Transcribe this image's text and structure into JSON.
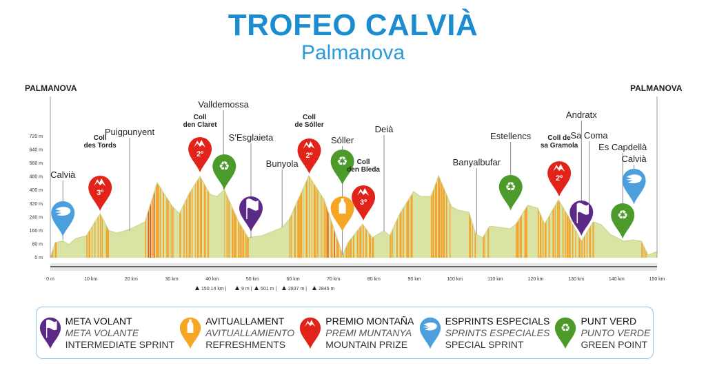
{
  "title": "TROFEO CALVIÀ",
  "subtitle": "Palmanova",
  "colors": {
    "title": "#1b8ccf",
    "profile_fill": "#d9e3a4",
    "stripe_orange": "#f2a530",
    "stripe_red": "#e8561f",
    "meta_volant": "#5b2a86",
    "avituallament": "#f5a623",
    "premio_montana": "#e2231a",
    "esprints": "#4a9fdc",
    "punt_verd": "#4c9a2a"
  },
  "chart_data": {
    "type": "area",
    "xlabel": "",
    "ylabel": "",
    "xlim": [
      0,
      150
    ],
    "ylim": [
      0,
      720
    ],
    "x_ticks": [
      "0 m",
      "10 km",
      "20 km",
      "30 km",
      "40 km",
      "50 km",
      "60 km",
      "70 km",
      "80 km",
      "90 km",
      "100 km",
      "110 km",
      "120 km",
      "130 km",
      "140 km",
      "150 km"
    ],
    "y_ticks": [
      "0 m",
      "80 m",
      "160 m",
      "240 m",
      "320 m",
      "400 m",
      "480 m",
      "560 m",
      "640 m",
      "720 m"
    ],
    "profile": [
      [
        0,
        0
      ],
      [
        1.2,
        90
      ],
      [
        3.2,
        100
      ],
      [
        4.6,
        78
      ],
      [
        6.3,
        115
      ],
      [
        8.9,
        130
      ],
      [
        12.3,
        262
      ],
      [
        14.5,
        160
      ],
      [
        16.5,
        147
      ],
      [
        19.6,
        168
      ],
      [
        23.4,
        213
      ],
      [
        26.4,
        446
      ],
      [
        30.2,
        303
      ],
      [
        31.9,
        262
      ],
      [
        34.4,
        385
      ],
      [
        37,
        483
      ],
      [
        39.5,
        376
      ],
      [
        41.2,
        364
      ],
      [
        43,
        405
      ],
      [
        46.4,
        221
      ],
      [
        48.9,
        119
      ],
      [
        52.3,
        131
      ],
      [
        57.4,
        180
      ],
      [
        59.1,
        229
      ],
      [
        63.9,
        487
      ],
      [
        67.7,
        344
      ],
      [
        72.3,
        16
      ],
      [
        73.6,
        90
      ],
      [
        77.2,
        200
      ],
      [
        79.6,
        119
      ],
      [
        82.5,
        160
      ],
      [
        83.9,
        131
      ],
      [
        86.4,
        262
      ],
      [
        89.8,
        393
      ],
      [
        91.5,
        364
      ],
      [
        94.1,
        364
      ],
      [
        96,
        487
      ],
      [
        99.2,
        303
      ],
      [
        100.9,
        282
      ],
      [
        103.5,
        270
      ],
      [
        105.2,
        139
      ],
      [
        106.9,
        119
      ],
      [
        108.6,
        188
      ],
      [
        111.2,
        180
      ],
      [
        113.7,
        172
      ],
      [
        115.1,
        200
      ],
      [
        118,
        311
      ],
      [
        120.5,
        295
      ],
      [
        122.2,
        200
      ],
      [
        125.6,
        344
      ],
      [
        128.2,
        241
      ],
      [
        131.3,
        98
      ],
      [
        134.2,
        213
      ],
      [
        136.2,
        196
      ],
      [
        138.4,
        139
      ],
      [
        141.8,
        98
      ],
      [
        144,
        106
      ],
      [
        146.1,
        98
      ],
      [
        147.8,
        16
      ],
      [
        150,
        37
      ]
    ],
    "start": "PALMANOVA",
    "finish": "PALMANOVA",
    "places": [
      {
        "name": "Calvià",
        "km": 3.1
      },
      {
        "name": "Coll des Tords",
        "km": 12.3,
        "bold": true
      },
      {
        "name": "Puigpunyent",
        "km": 19.6
      },
      {
        "name": "Coll den Claret",
        "km": 37,
        "bold": true
      },
      {
        "name": "Valldemossa",
        "km": 42.8
      },
      {
        "name": "S'Esglaieta",
        "km": 49.6
      },
      {
        "name": "Bunyola",
        "km": 57.3
      },
      {
        "name": "Coll de Sóller",
        "km": 64,
        "bold": true
      },
      {
        "name": "Sóller",
        "km": 72.2
      },
      {
        "name": "Coll den Bleda",
        "km": 77.4,
        "bold": true
      },
      {
        "name": "Deià",
        "km": 82.5
      },
      {
        "name": "Banyalbufar",
        "km": 105.4
      },
      {
        "name": "Estellencs",
        "km": 113.8
      },
      {
        "name": "Coll de sa Gramola",
        "km": 125.8,
        "bold": true
      },
      {
        "name": "Andratx",
        "km": 131.3
      },
      {
        "name": "Sa Coma",
        "km": 133.2
      },
      {
        "name": "Es Capdellà",
        "km": 141.5
      },
      {
        "name": "Calvià",
        "km": 144.3
      }
    ],
    "markers": [
      {
        "type": "esprints",
        "km": 3.1
      },
      {
        "type": "premio_montana",
        "km": 12.3,
        "category": "3º"
      },
      {
        "type": "premio_montana",
        "km": 37,
        "category": "2º"
      },
      {
        "type": "punt_verd",
        "km": 43
      },
      {
        "type": "meta_volant",
        "km": 49.6
      },
      {
        "type": "premio_montana",
        "km": 64,
        "category": "2º"
      },
      {
        "type": "punt_verd",
        "km": 72.2
      },
      {
        "type": "avituallament",
        "km": 72.2
      },
      {
        "type": "premio_montana",
        "km": 77.4,
        "category": "3º"
      },
      {
        "type": "punt_verd",
        "km": 113.8
      },
      {
        "type": "premio_montana",
        "km": 125.8,
        "category": "2º"
      },
      {
        "type": "meta_volant",
        "km": 131.3
      },
      {
        "type": "punt_verd",
        "km": 141.5
      },
      {
        "type": "esprints",
        "km": 144.3
      }
    ]
  },
  "stats": [
    "150.14 km",
    "9 m",
    "501 m",
    "2837 m",
    "2845 m"
  ],
  "legend": [
    {
      "type": "meta_volant",
      "l1": "META VOLANT",
      "l2": "META VOLANTE",
      "l3": "INTERMEDIATE SPRINT"
    },
    {
      "type": "avituallament",
      "l1": "AVITUALLAMENT",
      "l2": "AVITUALLAMIENTO",
      "l3": "REFRESHMENTS"
    },
    {
      "type": "premio_montana",
      "l1": "PREMIO MONTAÑA",
      "l2": "PREMI MUNTANYA",
      "l3": "MOUNTAIN PRIZE"
    },
    {
      "type": "esprints",
      "l1": "ESPRINTS ESPECIALS",
      "l2": "SPRINTS ESPECIALES",
      "l3": "SPECIAL SPRINT"
    },
    {
      "type": "punt_verd",
      "l1": "PUNT VERD",
      "l2": "PUNTO VERDE",
      "l3": "GREEN POINT"
    }
  ]
}
